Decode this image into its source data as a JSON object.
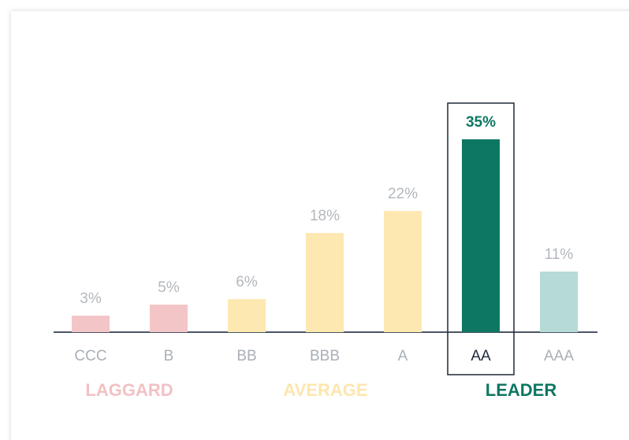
{
  "chart_data": {
    "type": "bar",
    "categories": [
      "CCC",
      "B",
      "BB",
      "BBB",
      "A",
      "AA",
      "AAA"
    ],
    "values": [
      3,
      5,
      6,
      18,
      22,
      35,
      11
    ],
    "value_labels": [
      "3%",
      "5%",
      "6%",
      "18%",
      "22%",
      "35%",
      "11%"
    ],
    "colors": [
      "#f3c5c7",
      "#f3c5c7",
      "#fde8b1",
      "#fde8b1",
      "#fde8b1",
      "#0d7763",
      "#b6dad5"
    ],
    "highlight": "AA",
    "groups": [
      {
        "name": "LAGGARD",
        "color": "#f2c1c4"
      },
      {
        "name": "AVERAGE",
        "color": "#fde6ad"
      },
      {
        "name": "LEADER",
        "color": "#0d7763"
      }
    ]
  }
}
